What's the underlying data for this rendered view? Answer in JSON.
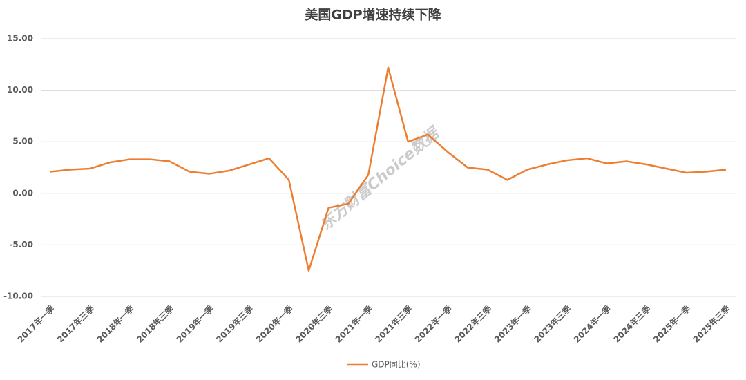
{
  "chart_data": {
    "type": "line",
    "title": "美国GDP增速持续下降",
    "watermark": "东方财富Choice数据",
    "categories": [
      "2017年一季",
      null,
      "2017年三季",
      null,
      "2018年一季",
      null,
      "2018年三季",
      null,
      "2019年一季",
      null,
      "2019年三季",
      null,
      "2020年一季",
      null,
      "2020年三季",
      null,
      "2021年一季",
      null,
      "2021年三季",
      null,
      "2022年一季",
      null,
      "2022年三季",
      null,
      "2023年一季",
      null,
      "2023年三季",
      null,
      "2024年一季",
      null,
      "2024年三季",
      null,
      "2025年一季",
      null,
      "2025年三季"
    ],
    "series": [
      {
        "name": "GDP同比(%)",
        "color": "#ed7d31",
        "values": [
          2.1,
          2.3,
          2.4,
          3.0,
          3.3,
          3.3,
          3.1,
          2.1,
          1.9,
          2.2,
          2.8,
          3.4,
          1.3,
          -7.5,
          -1.4,
          -1.0,
          1.8,
          12.2,
          5.0,
          5.7,
          4.0,
          2.5,
          2.3,
          1.3,
          2.3,
          2.8,
          3.2,
          3.4,
          2.9,
          3.1,
          2.8,
          2.4,
          2.0,
          2.1,
          2.3
        ]
      }
    ],
    "ylim": [
      -10,
      15
    ],
    "yticks": [
      {
        "value": -10,
        "label": "-10.00"
      },
      {
        "value": -5,
        "label": "-5.00"
      },
      {
        "value": 0,
        "label": "0.00"
      },
      {
        "value": 5,
        "label": "5.00"
      },
      {
        "value": 10,
        "label": "10.00"
      },
      {
        "value": 15,
        "label": "15.00"
      }
    ],
    "grid": true,
    "legend": "bottom"
  }
}
